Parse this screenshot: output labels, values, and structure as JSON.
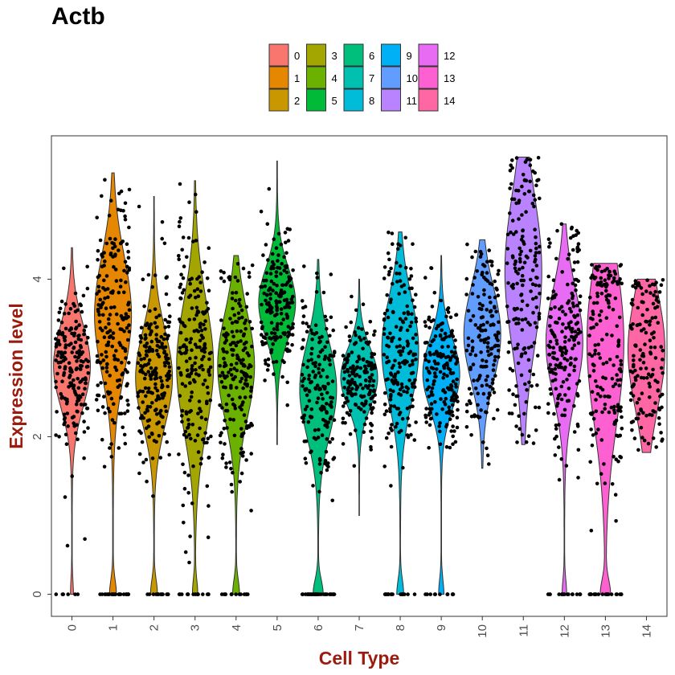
{
  "chart_data": {
    "type": "violin",
    "title": "Actb",
    "xlabel": "Cell Type",
    "ylabel": "Expression level",
    "categories": [
      "0",
      "1",
      "2",
      "3",
      "4",
      "5",
      "6",
      "7",
      "8",
      "9",
      "10",
      "11",
      "12",
      "13",
      "14"
    ],
    "yticks": [
      "0",
      "2",
      "4"
    ],
    "ylim": [
      -0.28,
      5.82
    ],
    "legend_position": "top",
    "axis_label_color": "#9B1B0E",
    "colors": [
      "#F8766D",
      "#E58700",
      "#C99800",
      "#A3A500",
      "#6BB100",
      "#00BA38",
      "#00BF7D",
      "#00C0AF",
      "#00BCD8",
      "#00B0F6",
      "#619CFF",
      "#B983FF",
      "#E76BF3",
      "#FD61D1",
      "#FF67A4"
    ],
    "series": [
      {
        "name": "0",
        "min": 0.0,
        "max": 4.4,
        "median": 2.9,
        "q1": 2.6,
        "q3": 3.3,
        "zero_fraction": 0.03
      },
      {
        "name": "1",
        "min": 0.0,
        "max": 5.35,
        "median": 3.55,
        "q1": 2.9,
        "q3": 3.9,
        "zero_fraction": 0.08
      },
      {
        "name": "2",
        "min": 0.0,
        "max": 5.05,
        "median": 2.75,
        "q1": 2.3,
        "q3": 3.1,
        "zero_fraction": 0.08
      },
      {
        "name": "3",
        "min": 0.0,
        "max": 5.25,
        "median": 2.9,
        "q1": 2.3,
        "q3": 3.4,
        "zero_fraction": 0.06
      },
      {
        "name": "4",
        "min": 0.0,
        "max": 4.3,
        "median": 2.9,
        "q1": 2.4,
        "q3": 3.3,
        "zero_fraction": 0.08
      },
      {
        "name": "5",
        "min": 1.9,
        "max": 5.5,
        "median": 3.7,
        "q1": 3.4,
        "q3": 4.0,
        "zero_fraction": 0.0
      },
      {
        "name": "6",
        "min": 0.0,
        "max": 4.25,
        "median": 2.6,
        "q1": 2.1,
        "q3": 2.9,
        "zero_fraction": 0.12
      },
      {
        "name": "7",
        "min": 1.0,
        "max": 4.0,
        "median": 2.75,
        "q1": 2.5,
        "q3": 3.0,
        "zero_fraction": 0.0
      },
      {
        "name": "8",
        "min": 0.0,
        "max": 4.6,
        "median": 3.1,
        "q1": 2.5,
        "q3": 3.4,
        "zero_fraction": 0.08
      },
      {
        "name": "9",
        "min": 0.0,
        "max": 4.3,
        "median": 2.8,
        "q1": 2.5,
        "q3": 3.1,
        "zero_fraction": 0.06
      },
      {
        "name": "10",
        "min": 1.6,
        "max": 4.5,
        "median": 3.3,
        "q1": 2.9,
        "q3": 3.7,
        "zero_fraction": 0.0
      },
      {
        "name": "11",
        "min": 1.9,
        "max": 5.55,
        "median": 4.1,
        "q1": 3.3,
        "q3": 4.6,
        "zero_fraction": 0.0
      },
      {
        "name": "12",
        "min": 0.0,
        "max": 4.7,
        "median": 3.2,
        "q1": 2.6,
        "q3": 3.5,
        "zero_fraction": 0.05
      },
      {
        "name": "13",
        "min": 0.0,
        "max": 4.2,
        "median": 3.2,
        "q1": 2.2,
        "q3": 3.6,
        "zero_fraction": 0.12
      },
      {
        "name": "14",
        "min": 1.8,
        "max": 4.0,
        "median": 3.1,
        "q1": 2.6,
        "q3": 3.6,
        "zero_fraction": 0.0
      }
    ]
  }
}
